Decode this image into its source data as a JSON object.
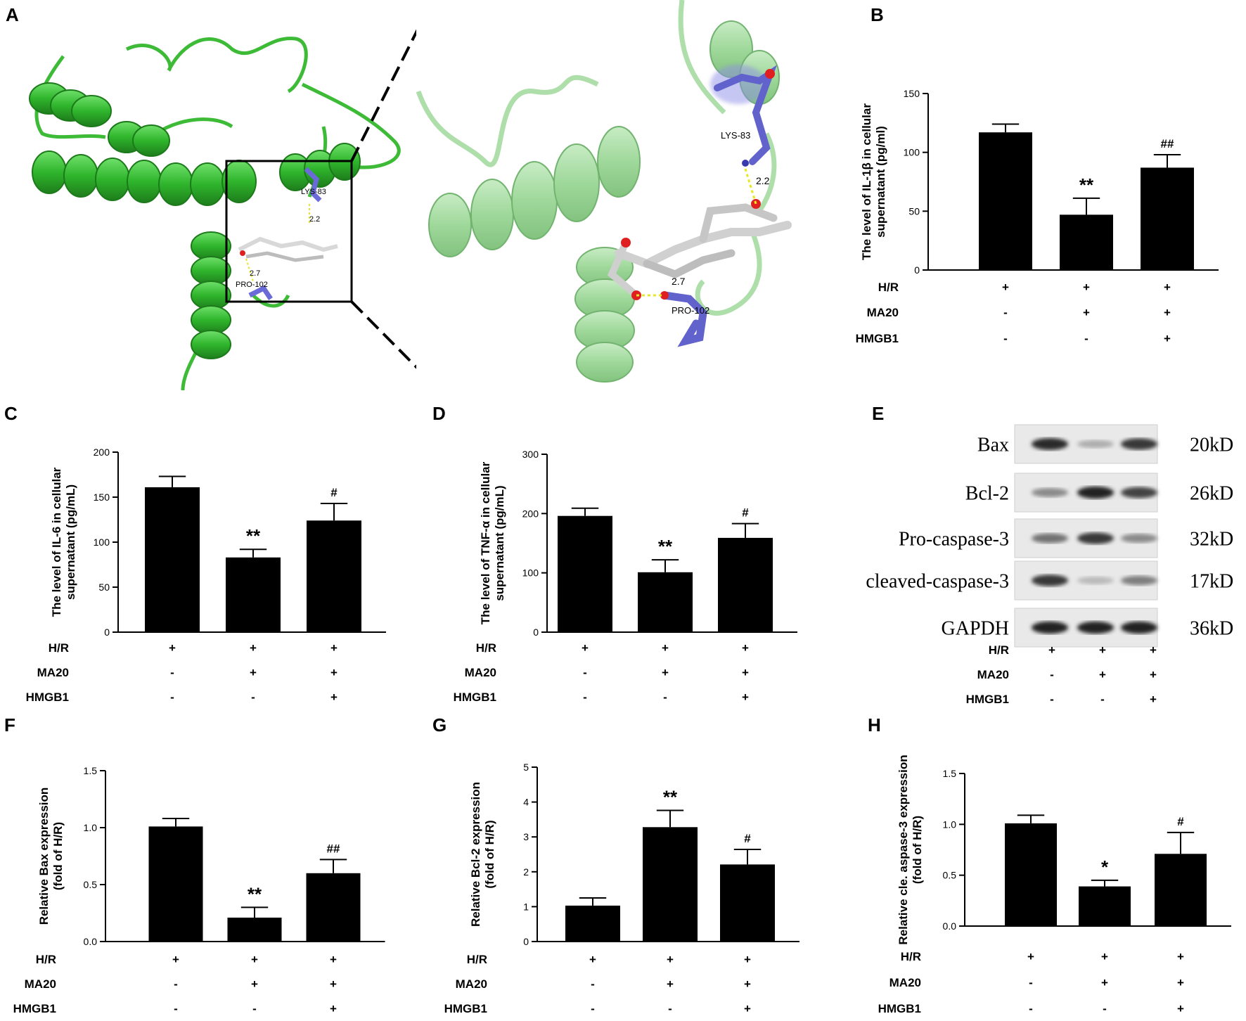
{
  "panels": {
    "A": "A",
    "B": "B",
    "C": "C",
    "D": "D",
    "E": "E",
    "F": "F",
    "G": "G",
    "H": "H"
  },
  "docking": {
    "residue_1": "LYS-83",
    "residue_2": "PRO-102",
    "dist_1": "2.2",
    "dist_2": "2.7"
  },
  "conditions": {
    "rows": [
      {
        "label": "H/R",
        "values": [
          "+",
          "+",
          "+"
        ]
      },
      {
        "label": "MA20",
        "values": [
          "-",
          "+",
          "+"
        ]
      },
      {
        "label": "HMGB1",
        "values": [
          "-",
          "-",
          "+"
        ]
      }
    ]
  },
  "blot": {
    "bands": [
      {
        "protein": "Bax",
        "size": "20kD",
        "intensity": [
          0.9,
          0.35,
          0.85
        ]
      },
      {
        "protein": "Bcl-2",
        "size": "26kD",
        "intensity": [
          0.5,
          0.95,
          0.8
        ]
      },
      {
        "protein": "Pro-caspase-3",
        "size": "32kD",
        "intensity": [
          0.6,
          0.85,
          0.5
        ]
      },
      {
        "protein": "cleaved-caspase-3",
        "size": "17kD",
        "intensity": [
          0.85,
          0.3,
          0.55
        ]
      },
      {
        "protein": "GAPDH",
        "size": "36kD",
        "intensity": [
          0.95,
          0.95,
          0.95
        ]
      }
    ]
  },
  "chart_data": [
    {
      "panel": "B",
      "type": "bar",
      "ylabel_1": "The level of IL-1β in cellular",
      "ylabel_2": "supernatant (pg/ml)",
      "ylim": [
        0,
        150
      ],
      "yticks": [
        0,
        50,
        100,
        150
      ],
      "values": [
        117,
        47,
        87
      ],
      "errors": [
        7,
        14,
        11
      ],
      "marks": [
        "",
        "**",
        "##"
      ]
    },
    {
      "panel": "C",
      "type": "bar",
      "ylabel_1": "The level of IL-6 in cellular",
      "ylabel_2": "supernatant (pg/mL)",
      "ylim": [
        0,
        200
      ],
      "yticks": [
        0,
        50,
        100,
        150,
        200
      ],
      "values": [
        161,
        83,
        124
      ],
      "errors": [
        12,
        9,
        19
      ],
      "marks": [
        "",
        "**",
        "#"
      ]
    },
    {
      "panel": "D",
      "type": "bar",
      "ylabel_1": "The level of TNF-α in cellular",
      "ylabel_2": "supernatant (pg/mL)",
      "ylim": [
        0,
        300
      ],
      "yticks": [
        0,
        100,
        200,
        300
      ],
      "values": [
        196,
        101,
        159
      ],
      "errors": [
        13,
        21,
        24
      ],
      "marks": [
        "",
        "**",
        "#"
      ]
    },
    {
      "panel": "F",
      "type": "bar",
      "ylabel_1": "Relative Bax expression",
      "ylabel_2": "(fold of H/R)",
      "ylim": [
        0,
        1.5
      ],
      "yticks": [
        "0.0",
        "0.5",
        "1.0",
        "1.5"
      ],
      "values": [
        1.01,
        0.21,
        0.6
      ],
      "errors": [
        0.07,
        0.09,
        0.12
      ],
      "marks": [
        "",
        "**",
        "##"
      ]
    },
    {
      "panel": "G",
      "type": "bar",
      "ylabel_1": "Relative Bcl-2 expression",
      "ylabel_2": "(fold of H/R)",
      "ylim": [
        0,
        5
      ],
      "yticks": [
        0,
        1,
        2,
        3,
        4,
        5
      ],
      "values": [
        1.03,
        3.28,
        2.21
      ],
      "errors": [
        0.22,
        0.48,
        0.43
      ],
      "marks": [
        "",
        "**",
        "#"
      ]
    },
    {
      "panel": "H",
      "type": "bar",
      "ylabel_1": "Relative cle. aspase-3 expression",
      "ylabel_2": "(fold of H/R)",
      "ylim": [
        0,
        1.5
      ],
      "yticks": [
        "0.0",
        "0.5",
        "1.0",
        "1.5"
      ],
      "values": [
        1.01,
        0.39,
        0.71
      ],
      "errors": [
        0.08,
        0.06,
        0.21
      ],
      "marks": [
        "",
        "*",
        "#"
      ]
    }
  ]
}
